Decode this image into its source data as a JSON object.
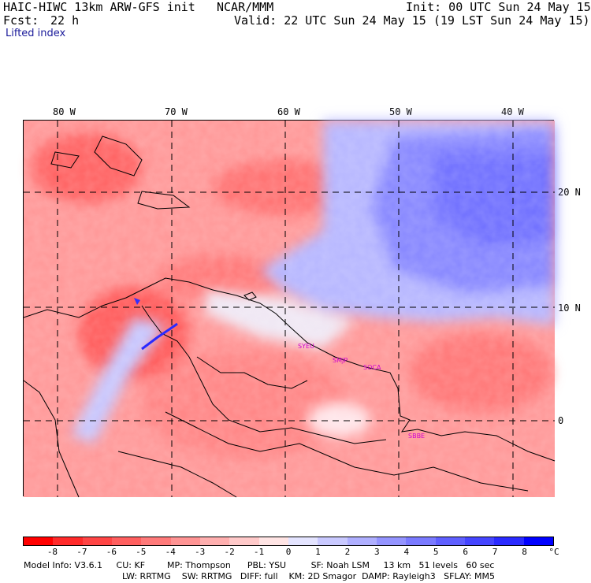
{
  "header": {
    "model": "HAIC-HIWC 13km ARW-GFS init",
    "org": "NCAR/MMM",
    "init": "Init: 00 UTC Sun 24 May 15",
    "fcst_label": "Fcst:",
    "fcst_value": "22 h",
    "valid": "Valid: 22 UTC Sun 24 May 15 (19 LST Sun 24 May 15)",
    "field": "Lifted index"
  },
  "axes": {
    "lon_labels": [
      "80 W",
      "70 W",
      "60 W",
      "50 W",
      "40 W"
    ],
    "lat_labels": [
      "20 N",
      "10 N",
      "0"
    ]
  },
  "stations": [
    "SYEU",
    "SMJP",
    "SOCA",
    "SBBE"
  ],
  "colorbar": {
    "ticks": [
      "-8",
      "-7",
      "-6",
      "-5",
      "-4",
      "-3",
      "-2",
      "-1",
      "0",
      "1",
      "2",
      "3",
      "4",
      "5",
      "6",
      "7",
      "8"
    ],
    "unit": "°C",
    "colors": [
      "#ff0000",
      "#ff2a2a",
      "#ff4545",
      "#ff5f5f",
      "#ff7a7a",
      "#ff9494",
      "#ffafaf",
      "#ffc9c9",
      "#ffe4e4",
      "#e4e4ff",
      "#c9c9ff",
      "#afafff",
      "#9494ff",
      "#7a7aff",
      "#5f5fff",
      "#4545ff",
      "#2a2aff",
      "#0000ff"
    ]
  },
  "footer": {
    "line1": "Model Info: V3.6.1     CU: KF        MP: Thompson      PBL: YSU         SF: Noah LSM     13 km   51 levels   60 sec",
    "line2": "LW: RRTMG    SW: RRTMG   DIFF: full    KM: 2D Smagor  DAMP: Rayleigh3   SFLAY: MM5"
  }
}
